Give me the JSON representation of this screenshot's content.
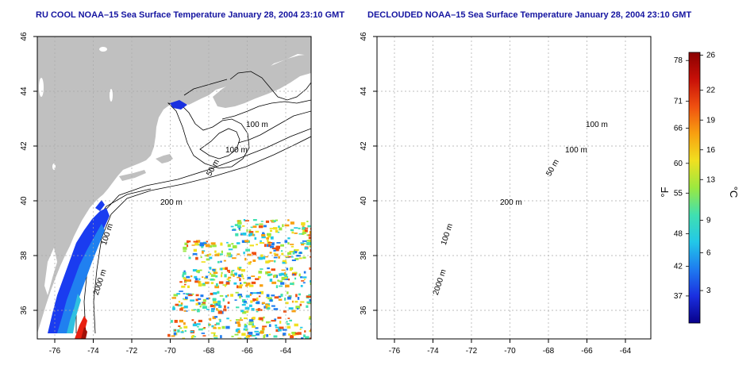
{
  "panels": [
    {
      "title": "RU COOL NOAA–15 Sea Surface Temperature January 28, 2004 23:10 GMT",
      "contour_labels": [
        "100 m",
        "100 m",
        "50 m",
        "200 m",
        "2000 m",
        "100 m"
      ]
    },
    {
      "title": "DECLOUDED NOAA–15 Sea Surface Temperature January 28, 2004 23:10 GMT",
      "contour_labels": [
        "100 m",
        "100 m",
        "50 m",
        "200 m",
        "2000 m",
        "100 m"
      ]
    }
  ],
  "axes": {
    "x_ticks": [
      "-76",
      "-74",
      "-72",
      "-70",
      "-68",
      "-66",
      "-64"
    ],
    "y_ticks": [
      "36",
      "38",
      "40",
      "42",
      "44",
      "46"
    ]
  },
  "colorbar": {
    "fahrenheit_label": "°F",
    "celsius_label": "°C",
    "fahrenheit_ticks": [
      "78",
      "71",
      "66",
      "60",
      "55",
      "48",
      "42",
      "37"
    ],
    "celsius_ticks": [
      "26",
      "22",
      "19",
      "16",
      "13",
      "9",
      "6",
      "3"
    ],
    "colors": [
      "#08008a",
      "#1a2fe0",
      "#1e7cf0",
      "#22c8e8",
      "#40e0b0",
      "#9be840",
      "#f0e020",
      "#f8a010",
      "#f05010",
      "#c81008",
      "#8a0000"
    ]
  },
  "colors": {
    "land": "#c0c0c0",
    "ocean": "#ffffff",
    "title": "#1414a0",
    "grid": "#a8a8a8"
  }
}
